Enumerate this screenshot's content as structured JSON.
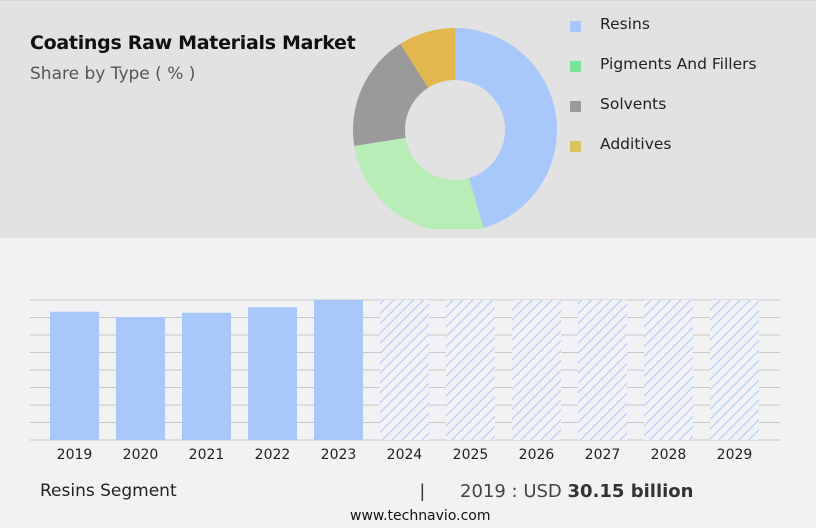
{
  "header": {
    "title": "Coatings Raw Materials Market",
    "subtitle": "Share by Type ( % )"
  },
  "legend": {
    "items": [
      {
        "label": "Resins",
        "color": "#a8c8fc"
      },
      {
        "label": "Pigments And Fillers",
        "color": "#7de39a"
      },
      {
        "label": "Solvents",
        "color": "#9a9a9a"
      },
      {
        "label": "Additives",
        "color": "#dcc25c"
      }
    ]
  },
  "footer": {
    "segment": "Resins Segment",
    "divider": "|",
    "year_prefix": "2019 : USD",
    "value": "30.15 billion",
    "site": "www.technavio.com"
  },
  "chart_data": [
    {
      "type": "pie",
      "title": "Coatings Raw Materials Market",
      "subtitle": "Share by Type ( % )",
      "donut": true,
      "categories": [
        "Resins",
        "Pigments And Fillers",
        "Solvents",
        "Additives"
      ],
      "values": [
        45.5,
        27.0,
        18.5,
        9.0
      ],
      "colors": [
        "#a8c8fc",
        "#b8edb8",
        "#9a9a9a",
        "#e2b84e"
      ],
      "legend_position": "right"
    },
    {
      "type": "bar",
      "title": "Resins Segment",
      "categories": [
        "2019",
        "2020",
        "2021",
        "2022",
        "2023",
        "2024",
        "2025",
        "2026",
        "2027",
        "2028",
        "2029"
      ],
      "values": [
        30.15,
        28.9,
        29.9,
        31.2,
        32.9,
        null,
        null,
        null,
        null,
        null,
        null
      ],
      "forecast": [
        false,
        false,
        false,
        false,
        false,
        true,
        true,
        true,
        true,
        true,
        true
      ],
      "forecast_style": "hatched",
      "bar_color": "#a8c8fc",
      "xlabel": "",
      "ylabel": "",
      "grid": true,
      "annotation": "2019 : USD 30.15 billion"
    }
  ]
}
